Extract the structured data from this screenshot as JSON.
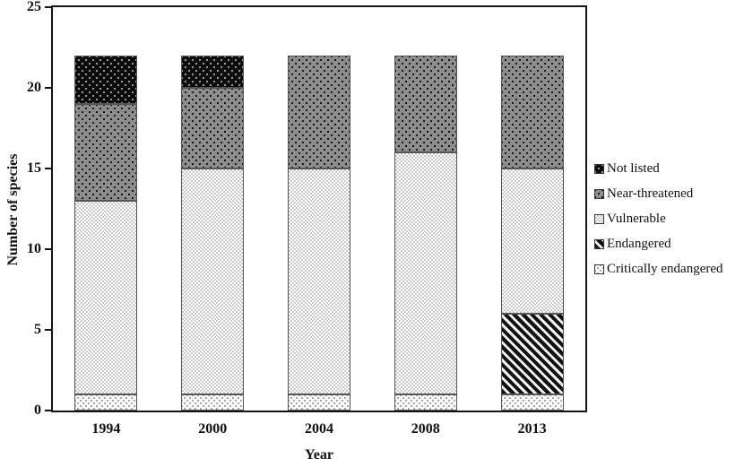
{
  "colors": {
    "axis": "#141414",
    "segment_border": "#555555",
    "near_threatened_fill": "#8e8e8e",
    "not_listed_fill": "#0b0b0b",
    "vulnerable_fill": "#e4e4e4",
    "endangered_stripe": "#0f0f0f",
    "critical_fill": "#fdfdfd"
  },
  "chart_data": {
    "type": "bar",
    "stacked": true,
    "title": "",
    "xlabel": "Year",
    "ylabel": "Number of species",
    "ylim": [
      0,
      25
    ],
    "yticks": [
      0,
      5,
      10,
      15,
      20,
      25
    ],
    "grid": false,
    "categories": [
      "1994",
      "2000",
      "2004",
      "2008",
      "2013"
    ],
    "series": [
      {
        "name": "Critically endangered",
        "pattern": "critical",
        "values": [
          1,
          1,
          1,
          1,
          1
        ]
      },
      {
        "name": "Endangered",
        "pattern": "endangered",
        "values": [
          0,
          0,
          0,
          0,
          5
        ]
      },
      {
        "name": "Vulnerable",
        "pattern": "vulnerable",
        "values": [
          12,
          14,
          14,
          15,
          9
        ]
      },
      {
        "name": "Near-threatened",
        "pattern": "nearthreatened",
        "values": [
          6,
          5,
          7,
          6,
          7
        ]
      },
      {
        "name": "Not listed",
        "pattern": "notlisted",
        "values": [
          3,
          2,
          0,
          0,
          0
        ]
      }
    ],
    "totals": [
      22,
      22,
      22,
      22,
      22
    ],
    "legend_position": "right",
    "legend": [
      {
        "label": "Not listed",
        "pattern": "notlisted"
      },
      {
        "label": "Near-threatened",
        "pattern": "nearthreatened"
      },
      {
        "label": "Vulnerable",
        "pattern": "vulnerable"
      },
      {
        "label": "Endangered",
        "pattern": "endangered"
      },
      {
        "label": "Critically endangered",
        "pattern": "critical"
      }
    ],
    "patterns": {
      "notlisted": "black with light square dots",
      "nearthreatened": "gray with black square dots",
      "vulnerable": "light fine checkerboard",
      "endangered": "black backslash diagonal hatch",
      "critical": "white with sparse gray dots"
    }
  }
}
